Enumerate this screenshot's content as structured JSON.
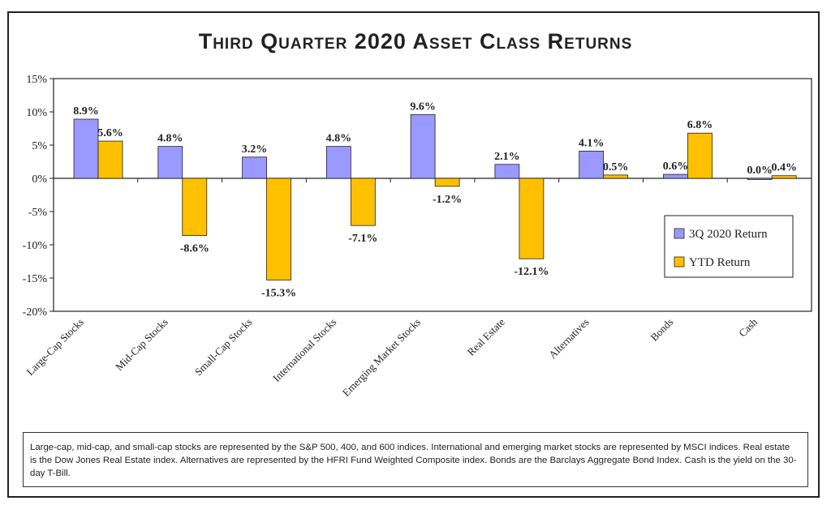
{
  "chart_data": {
    "type": "bar",
    "title": "Third Quarter 2020 Asset Class Returns",
    "xlabel": "",
    "ylabel": "",
    "ylim": [
      -20,
      15
    ],
    "yticks": [
      15,
      10,
      5,
      0,
      -5,
      -10,
      -15,
      -20
    ],
    "ytick_labels": [
      "15%",
      "10%",
      "5%",
      "0%",
      "-5%",
      "-10%",
      "-15%",
      "-20%"
    ],
    "categories": [
      "Large-Cap Stocks",
      "Mid-Cap Stocks",
      "Small-Cap Stocks",
      "International Stocks",
      "Emerging Market Stocks",
      "Real Estate",
      "Alternatives",
      "Bonds",
      "Cash"
    ],
    "series": [
      {
        "name": "3Q 2020 Return",
        "color": "#9999ff",
        "values": [
          8.9,
          4.8,
          3.2,
          4.8,
          9.6,
          2.1,
          4.1,
          0.6,
          0.0
        ],
        "labels": [
          "8.9%",
          "4.8%",
          "3.2%",
          "4.8%",
          "9.6%",
          "2.1%",
          "4.1%",
          "0.6%",
          "0.0%"
        ]
      },
      {
        "name": "YTD Return",
        "color": "#ffc000",
        "values": [
          5.6,
          -8.6,
          -15.3,
          -7.1,
          -1.2,
          -12.1,
          0.5,
          6.8,
          0.4
        ],
        "labels": [
          "5.6%",
          "-8.6%",
          "-15.3%",
          "-7.1%",
          "-1.2%",
          "-12.1%",
          "0.5%",
          "6.8%",
          "0.4%"
        ]
      }
    ],
    "legend_position": "right",
    "grid": false
  },
  "footnote": "Large-cap, mid-cap, and small-cap stocks are represented by the S&P 500, 400, and 600 indices. International and emerging market stocks are represented by MSCI indices. Real estate is the Dow Jones Real Estate index. Alternatives are represented by the HFRI Fund Weighted Composite index. Bonds are the Barclays Aggregate Bond Index. Cash is the yield on the 30-day T-Bill."
}
